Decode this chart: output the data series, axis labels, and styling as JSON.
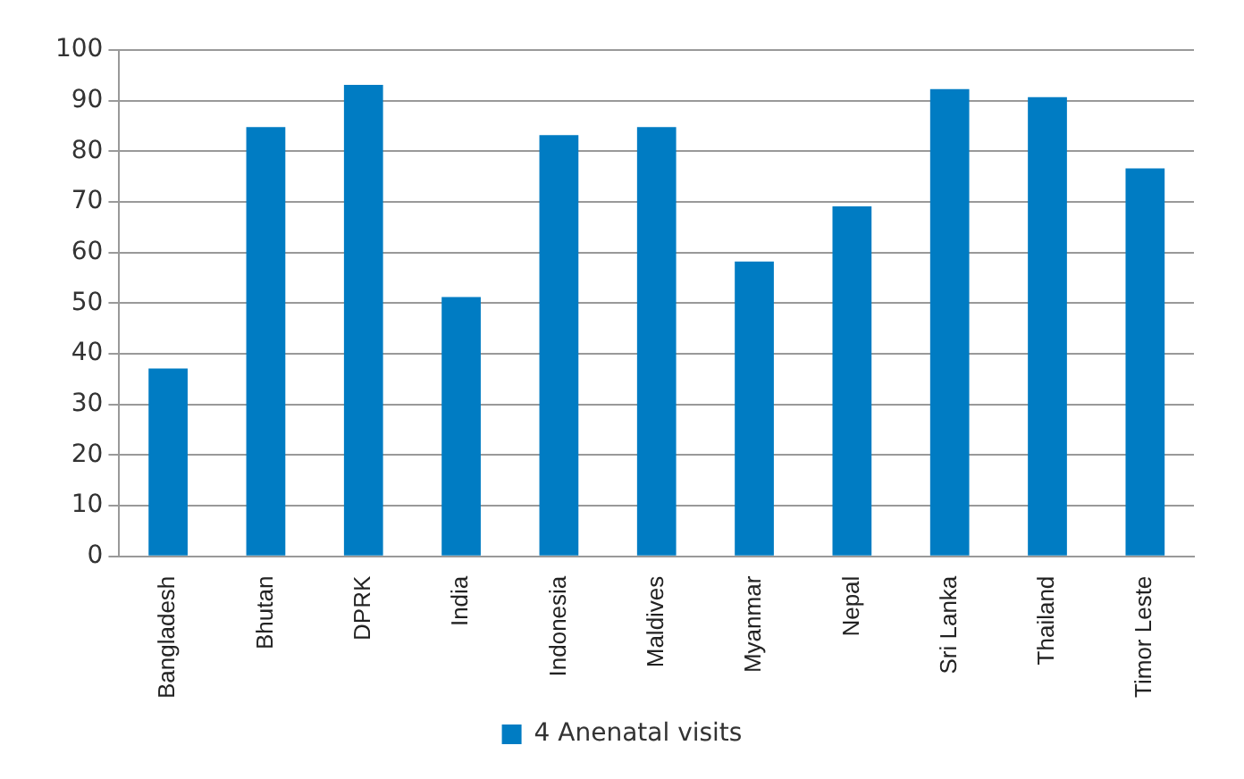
{
  "chart_data": {
    "type": "bar",
    "categories": [
      "Bangladesh",
      "Bhutan",
      "DPRK",
      "India",
      "Indonesia",
      "Maldives",
      "Myanmar",
      "Nepal",
      "Sri Lanka",
      "Thailand",
      "Timor Leste"
    ],
    "series": [
      {
        "name": "4 Anenatal visits",
        "color": "#007cc3",
        "values": [
          37.1,
          84.8,
          93.1,
          51.2,
          83.2,
          84.8,
          58.2,
          69.1,
          92.3,
          90.7,
          76.6
        ]
      }
    ],
    "ylim": [
      0,
      100
    ],
    "yticks": [
      0,
      10,
      20,
      30,
      40,
      50,
      60,
      70,
      80,
      90,
      100
    ],
    "grid": "y",
    "legend": "bottom"
  }
}
